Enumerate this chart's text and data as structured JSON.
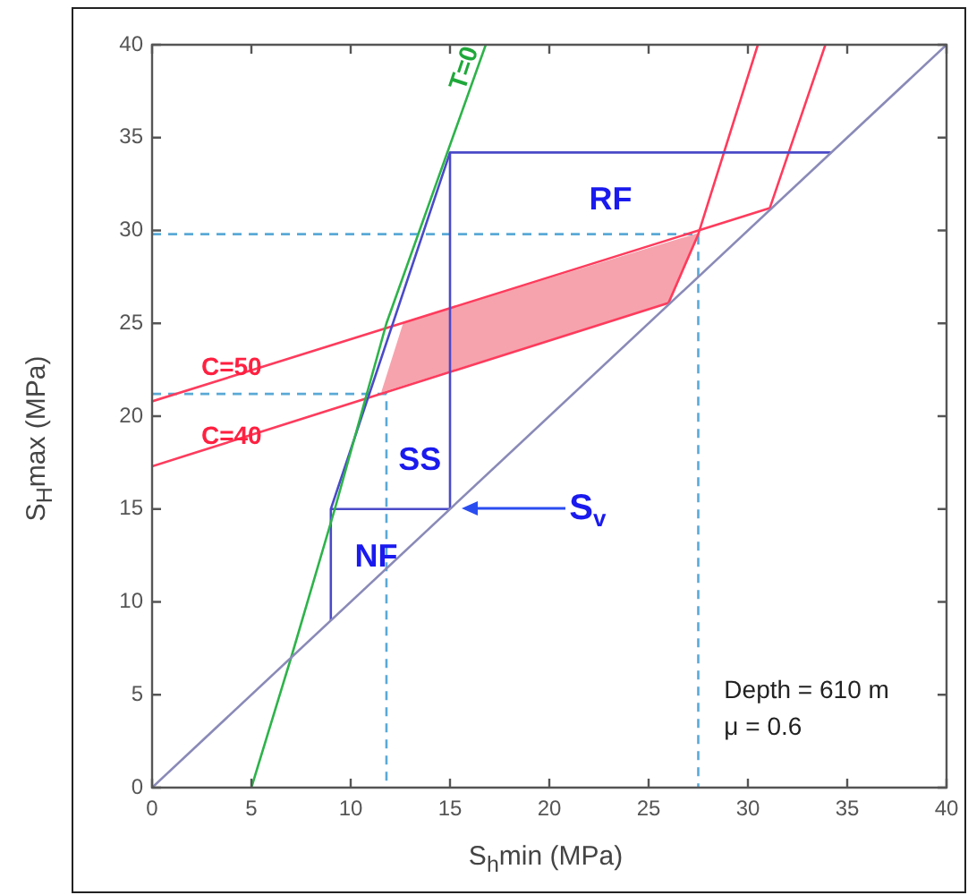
{
  "chart_data": {
    "type": "line",
    "xlabel": "S$_{h}$min (MPa)",
    "ylabel": "S$_{H}$max (MPa)",
    "xlim": [
      0,
      40
    ],
    "ylim": [
      0,
      40
    ],
    "xticks": [
      0,
      5,
      10,
      15,
      20,
      25,
      30,
      35,
      40
    ],
    "yticks": [
      0,
      5,
      10,
      15,
      20,
      25,
      30,
      35,
      40
    ],
    "grid": false,
    "legend": false,
    "series": [
      {
        "type": "area",
        "color": "#f6a3ad",
        "x": [
          11.6,
          12.7,
          27.5,
          26.0
        ],
        "values": [
          21.3,
          25.0,
          29.8,
          26.1
        ]
      },
      {
        "color": "#8a8ab8",
        "x": [
          0,
          40
        ],
        "values": [
          0,
          40
        ]
      },
      {
        "color": "#2db34a",
        "x": [
          5,
          7,
          9.2,
          11.8,
          16.8
        ],
        "values": [
          0,
          7,
          15,
          25,
          40
        ]
      },
      {
        "color": "#4a4ac8",
        "x": [
          9,
          9,
          15,
          34.2
        ],
        "values": [
          9,
          15,
          34.2,
          34.2
        ]
      },
      {
        "color": "#4a4ac8",
        "x": [
          9,
          15
        ],
        "values": [
          15,
          15
        ]
      },
      {
        "color": "#4a4ac8",
        "x": [
          15,
          15
        ],
        "values": [
          15,
          34.2
        ]
      },
      {
        "color": "#ff3b5c",
        "x": [
          0,
          31.1,
          33.9
        ],
        "values": [
          20.8,
          31.2,
          40
        ]
      },
      {
        "color": "#ff3b5c",
        "x": [
          0,
          26,
          27.5,
          30.5
        ],
        "values": [
          17.3,
          26.1,
          29.8,
          40
        ]
      },
      {
        "color": "#5aa9d6",
        "line_style": "dashed",
        "x": [
          0,
          27.5,
          27.5
        ],
        "values": [
          29.8,
          29.8,
          0
        ]
      },
      {
        "color": "#5aa9d6",
        "line_style": "dashed",
        "x": [
          0,
          11.8,
          11.8
        ],
        "values": [
          21.2,
          21.2,
          0
        ]
      }
    ],
    "annotations": [
      {
        "text": "C=50",
        "x": 4,
        "y": 22.6
      },
      {
        "text": "C=40",
        "x": 4,
        "y": 18.9
      },
      "RF",
      "SS",
      "NF",
      "T=0",
      "S$_{v}$",
      "Depth = 610 m",
      "μ = 0.6"
    ]
  }
}
